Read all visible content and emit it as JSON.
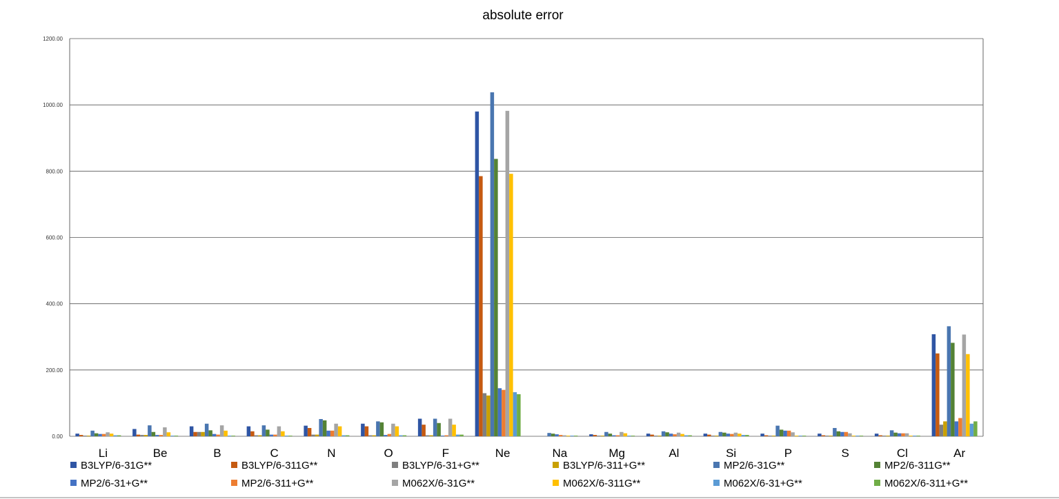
{
  "chart_data": {
    "type": "bar",
    "title": "absolute error",
    "xlabel": "",
    "ylabel": "",
    "ylim": [
      0,
      1200
    ],
    "yticks": [
      "0.00",
      "200.00",
      "400.00",
      "600.00",
      "800.00",
      "1000.00",
      "1200.00"
    ],
    "grid": true,
    "legend_position": "bottom",
    "categories": [
      "Li",
      "Be",
      "B",
      "C",
      "N",
      "O",
      "F",
      "Ne",
      "Na",
      "Mg",
      "Al",
      "Si",
      "P",
      "S",
      "Cl",
      "Ar"
    ],
    "series": [
      {
        "name": "B3LYP/6-31G**",
        "color": "#2f55a4",
        "values": [
          8,
          22,
          30,
          30,
          32,
          38,
          53,
          980,
          0,
          6,
          8,
          8,
          8,
          8,
          8,
          308
        ]
      },
      {
        "name": "B3LYP/6-311G**",
        "color": "#c55a11",
        "values": [
          4,
          5,
          13,
          15,
          25,
          30,
          35,
          785,
          0,
          4,
          5,
          5,
          3,
          3,
          3,
          250
        ]
      },
      {
        "name": "B3LYP/6-31+G**",
        "color": "#7f7f7f",
        "values": [
          2,
          4,
          13,
          3,
          5,
          3,
          3,
          130,
          0,
          2,
          2,
          2,
          2,
          2,
          2,
          35
        ]
      },
      {
        "name": "B3LYP/6-311+G**",
        "color": "#c9a000",
        "values": [
          2,
          4,
          13,
          3,
          5,
          3,
          3,
          123,
          0,
          2,
          2,
          2,
          2,
          2,
          2,
          45
        ]
      },
      {
        "name": "MP2/6-31G**",
        "color": "#4a76b0",
        "values": [
          17,
          33,
          38,
          33,
          52,
          45,
          53,
          1038,
          10,
          13,
          15,
          13,
          32,
          25,
          18,
          332
        ]
      },
      {
        "name": "MP2/6-311G**",
        "color": "#548235",
        "values": [
          9,
          13,
          18,
          20,
          48,
          42,
          40,
          837,
          8,
          8,
          12,
          11,
          20,
          15,
          11,
          282
        ]
      },
      {
        "name": "MP2/6-31+G**",
        "color": "#4472c4",
        "values": [
          7,
          4,
          7,
          5,
          17,
          4,
          2,
          145,
          6,
          3,
          8,
          8,
          17,
          13,
          9,
          45
        ]
      },
      {
        "name": "MP2/6-311+G**",
        "color": "#ed7d31",
        "values": [
          7,
          4,
          5,
          5,
          17,
          7,
          3,
          140,
          4,
          3,
          6,
          7,
          17,
          13,
          9,
          55
        ]
      },
      {
        "name": "M062X/6-31G**",
        "color": "#a5a5a5",
        "values": [
          12,
          27,
          33,
          30,
          38,
          38,
          53,
          982,
          3,
          13,
          11,
          11,
          12,
          9,
          9,
          307
        ]
      },
      {
        "name": "M062X/6-311G**",
        "color": "#ffc000",
        "values": [
          8,
          12,
          17,
          15,
          30,
          30,
          35,
          792,
          2,
          9,
          7,
          8,
          2,
          2,
          2,
          248
        ]
      },
      {
        "name": "M062X/6-31+G**",
        "color": "#5b9bd5",
        "values": [
          3,
          2,
          2,
          2,
          3,
          3,
          5,
          133,
          2,
          2,
          3,
          4,
          2,
          2,
          2,
          38
        ]
      },
      {
        "name": "M062X/6-311+G**",
        "color": "#70ad47",
        "values": [
          3,
          2,
          2,
          2,
          3,
          3,
          5,
          127,
          2,
          2,
          3,
          4,
          2,
          2,
          2,
          45
        ]
      }
    ]
  }
}
